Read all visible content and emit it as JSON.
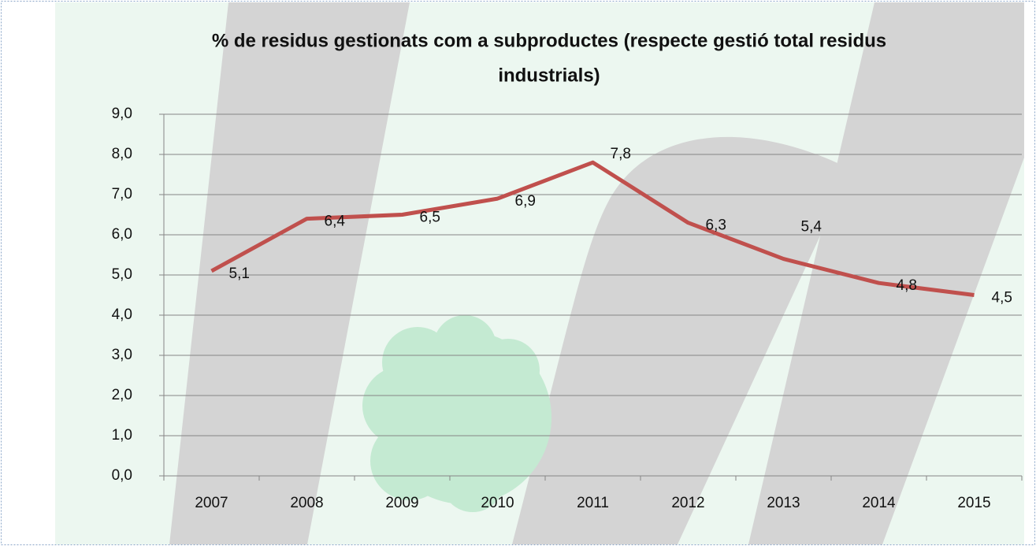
{
  "chart_data": {
    "type": "line",
    "title": [
      "% de residus gestionats com a subproductes (respecte gestió total residus",
      "industrials)"
    ],
    "categories": [
      "2007",
      "2008",
      "2009",
      "2010",
      "2011",
      "2012",
      "2013",
      "2014",
      "2015"
    ],
    "values": [
      5.1,
      6.4,
      6.5,
      6.9,
      7.8,
      6.3,
      5.4,
      4.8,
      4.5
    ],
    "value_labels": [
      "5,1",
      "6,4",
      "6,5",
      "6,9",
      "7,8",
      "6,3",
      "5,4",
      "4,8",
      "4,5"
    ],
    "color": "#c0504d",
    "ylim": [
      0,
      9
    ],
    "yticks": [
      {
        "value": 0,
        "label": "0,0"
      },
      {
        "value": 1,
        "label": "1,0"
      },
      {
        "value": 2,
        "label": "2,0"
      },
      {
        "value": 3,
        "label": "3,0"
      },
      {
        "value": 4,
        "label": "4,0"
      },
      {
        "value": 5,
        "label": "5,0"
      },
      {
        "value": 6,
        "label": "6,0"
      },
      {
        "value": 7,
        "label": "7,0"
      },
      {
        "value": 8,
        "label": "8,0"
      },
      {
        "value": 9,
        "label": "9,0"
      }
    ],
    "grid": true
  }
}
